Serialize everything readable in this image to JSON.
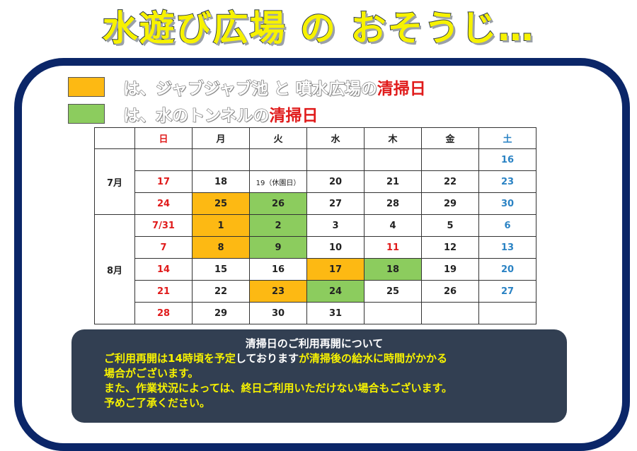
{
  "title": "水遊び広場 の おそうじ…",
  "legend": [
    {
      "color": "#fdb913",
      "text": "は、ジャブジャブ池 と 噴水広場の",
      "highlight": "清掃日"
    },
    {
      "color": "#8ccc5e",
      "text": "は、水のトンネルの",
      "highlight": "清掃日"
    }
  ],
  "calendar": {
    "weekdays": [
      "日",
      "月",
      "火",
      "水",
      "木",
      "金",
      "土"
    ],
    "months": [
      {
        "label": "7月",
        "weeks": [
          [
            "",
            "",
            "",
            "",
            "",
            "",
            "16"
          ],
          [
            "17",
            "18",
            "19（休園日）",
            "20",
            "21",
            "22",
            "23"
          ],
          [
            "24",
            "25",
            "26",
            "27",
            "28",
            "29",
            "30"
          ]
        ]
      },
      {
        "label": "8月",
        "weeks": [
          [
            "7/31",
            "1",
            "2",
            "3",
            "4",
            "5",
            "6"
          ],
          [
            "7",
            "8",
            "9",
            "10",
            "11",
            "12",
            "13"
          ],
          [
            "14",
            "15",
            "16",
            "17",
            "18",
            "19",
            "20"
          ],
          [
            "21",
            "22",
            "23",
            "24",
            "25",
            "26",
            "27"
          ],
          [
            "28",
            "29",
            "30",
            "31",
            "",
            "",
            ""
          ]
        ]
      }
    ]
  },
  "notice": {
    "heading": "清掃日のご利用再開について",
    "line1_a": "ご利用再開は14時頃を予定",
    "line1_b": "しております",
    "line1_c": "が清掃後の給水に時間がかかる",
    "line2": "場合がございます。",
    "line3": "また、作業状況によっては、終日ご利用いただけない場合もございます。",
    "line4": "予めご了承ください。"
  }
}
